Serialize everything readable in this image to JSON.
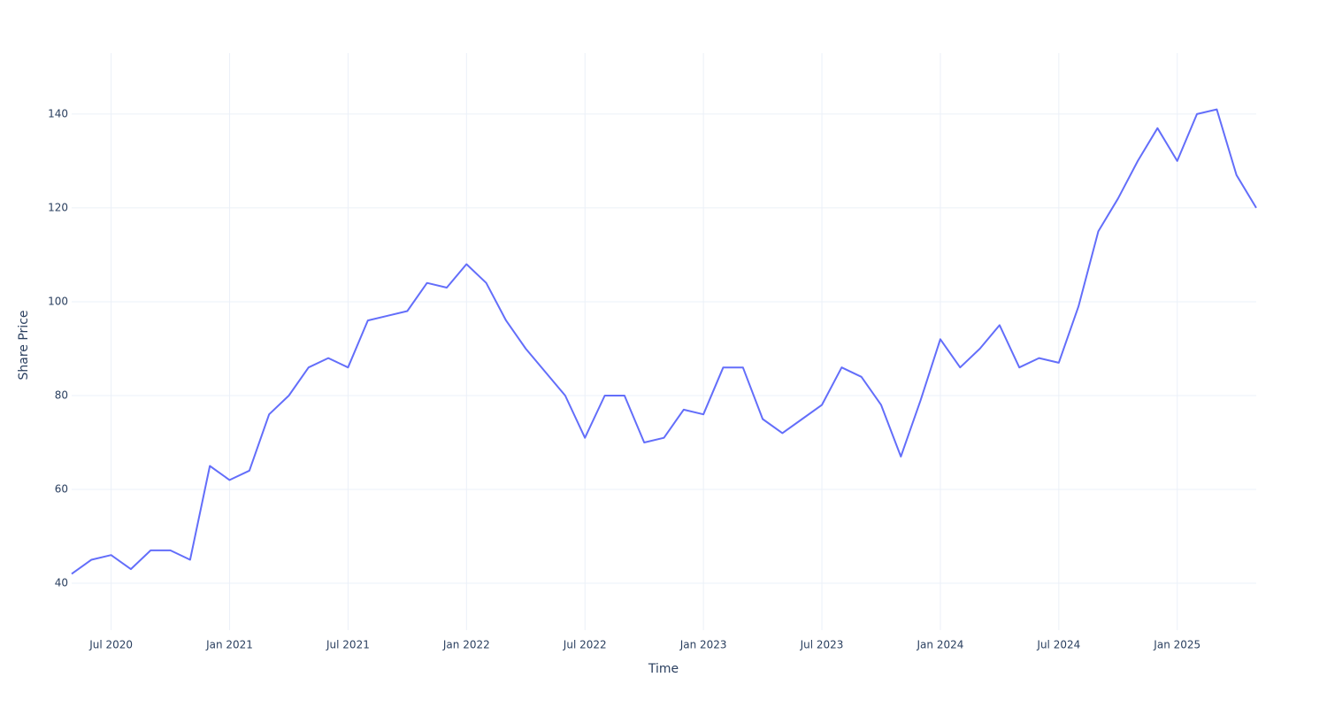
{
  "chart_data": {
    "type": "line",
    "x_label": "Time",
    "y_label": "Share Price",
    "x": [
      "2020-05",
      "2020-06",
      "2020-07",
      "2020-08",
      "2020-09",
      "2020-10",
      "2020-11",
      "2020-12",
      "2021-01",
      "2021-02",
      "2021-03",
      "2021-04",
      "2021-05",
      "2021-06",
      "2021-07",
      "2021-08",
      "2021-09",
      "2021-10",
      "2021-11",
      "2021-12",
      "2022-01",
      "2022-02",
      "2022-03",
      "2022-04",
      "2022-05",
      "2022-06",
      "2022-07",
      "2022-08",
      "2022-09",
      "2022-10",
      "2022-11",
      "2022-12",
      "2023-01",
      "2023-02",
      "2023-03",
      "2023-04",
      "2023-05",
      "2023-06",
      "2023-07",
      "2023-08",
      "2023-09",
      "2023-10",
      "2023-11",
      "2023-12",
      "2024-01",
      "2024-02",
      "2024-03",
      "2024-04",
      "2024-05",
      "2024-06",
      "2024-07",
      "2024-08",
      "2024-09",
      "2024-10",
      "2024-11",
      "2024-12",
      "2025-01",
      "2025-02",
      "2025-03",
      "2025-04",
      "2025-05"
    ],
    "series": [
      {
        "color": "#636efa",
        "values": [
          42,
          45,
          46,
          43,
          47,
          47,
          45,
          65,
          62,
          64,
          76,
          80,
          86,
          88,
          86,
          96,
          97,
          98,
          104,
          103,
          108,
          104,
          96,
          90,
          85,
          80,
          71,
          80,
          80,
          70,
          71,
          77,
          76,
          86,
          86,
          75,
          72,
          75,
          78,
          86,
          84,
          78,
          67,
          79,
          92,
          86,
          90,
          95,
          86,
          88,
          87,
          99,
          115,
          122,
          130,
          137,
          130,
          140,
          141,
          127,
          120
        ]
      }
    ],
    "xlim": [
      "2020-05",
      "2025-05"
    ],
    "xticks": [
      {
        "value": "2020-07",
        "label": "Jul 2020"
      },
      {
        "value": "2021-01",
        "label": "Jan 2021"
      },
      {
        "value": "2021-07",
        "label": "Jul 2021"
      },
      {
        "value": "2022-01",
        "label": "Jan 2022"
      },
      {
        "value": "2022-07",
        "label": "Jul 2022"
      },
      {
        "value": "2023-01",
        "label": "Jan 2023"
      },
      {
        "value": "2023-07",
        "label": "Jul 2023"
      },
      {
        "value": "2024-01",
        "label": "Jan 2024"
      },
      {
        "value": "2024-07",
        "label": "Jul 2024"
      },
      {
        "value": "2025-01",
        "label": "Jan 2025"
      }
    ],
    "ylim": [
      30,
      153
    ],
    "yticks": [
      40,
      60,
      80,
      100,
      120,
      140
    ],
    "grid": true
  }
}
